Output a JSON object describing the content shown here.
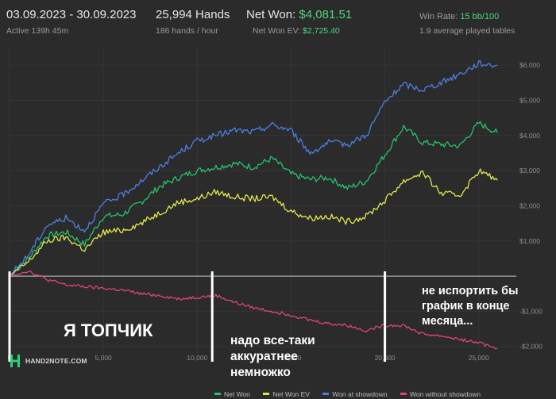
{
  "header": {
    "date_range": "03.09.2023 - 30.09.2023",
    "active": "Active 139h 45m",
    "hands": "25,994 Hands",
    "hands_per_hour": "186 hands / hour",
    "net_won_label": "Net Won:",
    "net_won_value": "$4,081.51",
    "net_won_ev_label": "Net Won  EV:",
    "net_won_ev_value": "$2,725.40",
    "win_rate_label": "Win Rate:",
    "win_rate_value": "15 bb/100",
    "avg_tables": "1.9 average played tables"
  },
  "logo": {
    "text": "HAND2NOTE.COM",
    "icon": "h2n-logo-icon"
  },
  "annotations": [
    "Я ТОПЧИК",
    "надо все-таки аккуратнее немножко",
    "не испортить бы график в конце месяца..."
  ],
  "colors": {
    "net_won": "#27c26b",
    "net_won_ev": "#e3e84a",
    "won_at_showdown": "#4d7fe3",
    "won_without_showdown": "#e0476d",
    "background": "#2b2b2b",
    "grid": "#363636"
  },
  "chart_data": {
    "type": "line",
    "xlim": [
      0,
      27000
    ],
    "ylim": [
      -2300,
      6500
    ],
    "x_ticks": [
      0,
      5000,
      10000,
      15000,
      20000,
      25000
    ],
    "x_tick_labels": [
      "0",
      "5,000",
      "10,000",
      "15,000",
      "20,000",
      "25,000"
    ],
    "y_ticks": [
      -2000,
      -1000,
      1000,
      2000,
      3000,
      4000,
      5000,
      6000
    ],
    "y_tick_labels": [
      "-$2,000",
      "-$1,000",
      "$1,000",
      "$2,000",
      "$3,000",
      "$4,000",
      "$5,000",
      "$6,000"
    ],
    "grid": true,
    "legend_position": "bottom",
    "vertical_markers": [
      0,
      10800,
      20000
    ],
    "series": [
      {
        "name": "Net Won",
        "x": [
          0,
          1000,
          2000,
          3000,
          4000,
          5000,
          6000,
          7000,
          8000,
          9000,
          10000,
          11000,
          12000,
          13000,
          14000,
          15000,
          16000,
          17000,
          18000,
          19000,
          20000,
          21000,
          22000,
          23000,
          24000,
          25000,
          25994
        ],
        "y": [
          0,
          500,
          1150,
          1250,
          900,
          1700,
          1750,
          2100,
          2550,
          2800,
          3000,
          3100,
          3200,
          3100,
          3350,
          2900,
          2750,
          2800,
          2500,
          2700,
          3450,
          4250,
          3800,
          3750,
          3700,
          4350,
          4080
        ]
      },
      {
        "name": "Net Won  EV",
        "x": [
          0,
          1000,
          2000,
          3000,
          4000,
          5000,
          6000,
          7000,
          8000,
          9000,
          10000,
          11000,
          12000,
          13000,
          14000,
          15000,
          16000,
          17000,
          18000,
          19000,
          20000,
          21000,
          22000,
          23000,
          24000,
          25000,
          25994
        ],
        "y": [
          0,
          400,
          1000,
          1100,
          750,
          1250,
          1300,
          1500,
          1800,
          2100,
          2200,
          2400,
          2250,
          2200,
          2250,
          1850,
          1650,
          1700,
          1550,
          1700,
          2150,
          2700,
          2950,
          2350,
          2300,
          3000,
          2725
        ]
      },
      {
        "name": "Won at showdown",
        "x": [
          0,
          1000,
          2000,
          3000,
          4000,
          5000,
          6000,
          7000,
          8000,
          9000,
          10000,
          11000,
          12000,
          13000,
          14000,
          15000,
          16000,
          17000,
          18000,
          19000,
          20000,
          21000,
          22000,
          23000,
          24000,
          25000,
          25994
        ],
        "y": [
          0,
          600,
          1450,
          1650,
          1300,
          2050,
          2300,
          2700,
          3100,
          3500,
          3850,
          4000,
          4150,
          4100,
          4300,
          4150,
          3500,
          3800,
          3750,
          4000,
          4950,
          5450,
          5300,
          5500,
          5750,
          6050,
          6000
        ]
      },
      {
        "name": "Won without showdown",
        "x": [
          0,
          1000,
          2000,
          3000,
          4000,
          5000,
          6000,
          7000,
          8000,
          9000,
          10000,
          11000,
          12000,
          13000,
          14000,
          15000,
          16000,
          17000,
          18000,
          19000,
          20000,
          21000,
          22000,
          23000,
          24000,
          25000,
          25994
        ],
        "y": [
          0,
          150,
          -100,
          -250,
          -300,
          -350,
          -400,
          -500,
          -550,
          -650,
          -600,
          -550,
          -750,
          -900,
          -1000,
          -1100,
          -1250,
          -1350,
          -1400,
          -1550,
          -1400,
          -1400,
          -1650,
          -1700,
          -1800,
          -1900,
          -2050
        ]
      }
    ]
  }
}
